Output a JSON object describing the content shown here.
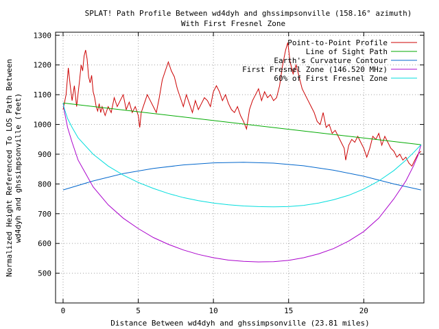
{
  "chart_data": {
    "type": "line",
    "title": "SPLAT! Path Profile Between wd4dyh and ghssimpsonville (158.16° azimuth)",
    "subtitle": "With First Fresnel Zone",
    "xlabel": "Distance Between wd4dyh and ghssimpsonville (23.81 miles)",
    "ylabel_line1": "Normalized Height Referenced To LOS Path Between",
    "ylabel_line2": "wd4dyh and ghssimpsonville (feet)",
    "xlim": [
      -0.5,
      24
    ],
    "ylim": [
      400,
      1310
    ],
    "x_ticks": [
      0,
      5,
      10,
      15,
      20
    ],
    "y_ticks": [
      500,
      600,
      700,
      800,
      900,
      1000,
      1100,
      1200,
      1300
    ],
    "grid": true,
    "legend_position": "top-right",
    "series": [
      {
        "name": "Point-to-Point Profile",
        "color": "#cc0000",
        "points": [
          [
            0,
            1050
          ],
          [
            0.2,
            1100
          ],
          [
            0.35,
            1190
          ],
          [
            0.5,
            1120
          ],
          [
            0.6,
            1080
          ],
          [
            0.75,
            1130
          ],
          [
            0.9,
            1060
          ],
          [
            1.0,
            1105
          ],
          [
            1.1,
            1150
          ],
          [
            1.2,
            1200
          ],
          [
            1.3,
            1180
          ],
          [
            1.4,
            1230
          ],
          [
            1.5,
            1250
          ],
          [
            1.6,
            1220
          ],
          [
            1.7,
            1160
          ],
          [
            1.8,
            1140
          ],
          [
            1.9,
            1165
          ],
          [
            2.0,
            1110
          ],
          [
            2.1,
            1090
          ],
          [
            2.2,
            1060
          ],
          [
            2.3,
            1045
          ],
          [
            2.4,
            1070
          ],
          [
            2.5,
            1040
          ],
          [
            2.6,
            1060
          ],
          [
            2.8,
            1030
          ],
          [
            3.0,
            1060
          ],
          [
            3.2,
            1040
          ],
          [
            3.4,
            1090
          ],
          [
            3.6,
            1060
          ],
          [
            3.8,
            1080
          ],
          [
            4.0,
            1100
          ],
          [
            4.2,
            1050
          ],
          [
            4.4,
            1075
          ],
          [
            4.6,
            1040
          ],
          [
            4.8,
            1060
          ],
          [
            5.0,
            1030
          ],
          [
            5.1,
            990
          ],
          [
            5.2,
            1040
          ],
          [
            5.4,
            1070
          ],
          [
            5.6,
            1100
          ],
          [
            5.8,
            1080
          ],
          [
            6.0,
            1060
          ],
          [
            6.2,
            1040
          ],
          [
            6.4,
            1090
          ],
          [
            6.6,
            1150
          ],
          [
            6.8,
            1180
          ],
          [
            7.0,
            1210
          ],
          [
            7.2,
            1180
          ],
          [
            7.4,
            1160
          ],
          [
            7.6,
            1120
          ],
          [
            7.8,
            1090
          ],
          [
            8.0,
            1060
          ],
          [
            8.2,
            1100
          ],
          [
            8.4,
            1070
          ],
          [
            8.6,
            1040
          ],
          [
            8.8,
            1080
          ],
          [
            9.0,
            1050
          ],
          [
            9.2,
            1070
          ],
          [
            9.4,
            1090
          ],
          [
            9.6,
            1080
          ],
          [
            9.8,
            1060
          ],
          [
            10.0,
            1110
          ],
          [
            10.2,
            1130
          ],
          [
            10.4,
            1110
          ],
          [
            10.6,
            1080
          ],
          [
            10.8,
            1100
          ],
          [
            11.0,
            1070
          ],
          [
            11.2,
            1050
          ],
          [
            11.4,
            1040
          ],
          [
            11.6,
            1060
          ],
          [
            11.8,
            1030
          ],
          [
            12.0,
            1010
          ],
          [
            12.2,
            985
          ],
          [
            12.4,
            1050
          ],
          [
            12.6,
            1080
          ],
          [
            12.8,
            1100
          ],
          [
            13.0,
            1120
          ],
          [
            13.2,
            1080
          ],
          [
            13.4,
            1110
          ],
          [
            13.6,
            1090
          ],
          [
            13.8,
            1100
          ],
          [
            14.0,
            1080
          ],
          [
            14.2,
            1090
          ],
          [
            14.4,
            1130
          ],
          [
            14.6,
            1200
          ],
          [
            14.8,
            1250
          ],
          [
            14.95,
            1275
          ],
          [
            15.1,
            1210
          ],
          [
            15.3,
            1170
          ],
          [
            15.5,
            1200
          ],
          [
            15.7,
            1160
          ],
          [
            15.9,
            1120
          ],
          [
            16.1,
            1100
          ],
          [
            16.3,
            1080
          ],
          [
            16.5,
            1060
          ],
          [
            16.7,
            1040
          ],
          [
            16.9,
            1010
          ],
          [
            17.1,
            1000
          ],
          [
            17.3,
            1040
          ],
          [
            17.5,
            990
          ],
          [
            17.7,
            1000
          ],
          [
            17.9,
            970
          ],
          [
            18.1,
            980
          ],
          [
            18.3,
            960
          ],
          [
            18.5,
            940
          ],
          [
            18.7,
            920
          ],
          [
            18.8,
            880
          ],
          [
            19.0,
            930
          ],
          [
            19.2,
            950
          ],
          [
            19.4,
            940
          ],
          [
            19.6,
            960
          ],
          [
            19.8,
            940
          ],
          [
            20.0,
            920
          ],
          [
            20.2,
            890
          ],
          [
            20.4,
            920
          ],
          [
            20.6,
            960
          ],
          [
            20.8,
            950
          ],
          [
            21.0,
            970
          ],
          [
            21.2,
            930
          ],
          [
            21.4,
            960
          ],
          [
            21.6,
            940
          ],
          [
            21.8,
            920
          ],
          [
            22.0,
            910
          ],
          [
            22.2,
            890
          ],
          [
            22.4,
            900
          ],
          [
            22.6,
            880
          ],
          [
            22.8,
            890
          ],
          [
            23.0,
            870
          ],
          [
            23.2,
            860
          ],
          [
            23.4,
            880
          ],
          [
            23.6,
            900
          ],
          [
            23.81,
            910
          ]
        ]
      },
      {
        "name": "Line of Sight Path",
        "color": "#00aa00",
        "points": [
          [
            0,
            1072
          ],
          [
            23.81,
            932
          ]
        ]
      },
      {
        "name": "Earth's Curvature Contour",
        "color": "#0066cc",
        "points": [
          [
            0,
            780
          ],
          [
            2,
            810
          ],
          [
            4,
            835
          ],
          [
            6,
            852
          ],
          [
            8,
            864
          ],
          [
            10,
            871
          ],
          [
            12,
            873
          ],
          [
            14,
            870
          ],
          [
            16,
            861
          ],
          [
            18,
            846
          ],
          [
            20,
            826
          ],
          [
            22,
            800
          ],
          [
            23.81,
            780
          ]
        ]
      },
      {
        "name": "First Fresnel Zone (146.520 MHz)",
        "color": "#aa00cc",
        "points": [
          [
            0,
            1072
          ],
          [
            0.1,
            1040
          ],
          [
            0.3,
            990
          ],
          [
            0.6,
            940
          ],
          [
            1,
            880
          ],
          [
            2,
            790
          ],
          [
            3,
            730
          ],
          [
            4,
            685
          ],
          [
            5,
            650
          ],
          [
            6,
            620
          ],
          [
            7,
            597
          ],
          [
            8,
            578
          ],
          [
            9,
            563
          ],
          [
            10,
            552
          ],
          [
            11,
            544
          ],
          [
            12,
            540
          ],
          [
            13,
            538
          ],
          [
            14,
            539
          ],
          [
            15,
            543
          ],
          [
            16,
            552
          ],
          [
            17,
            565
          ],
          [
            18,
            583
          ],
          [
            19,
            608
          ],
          [
            20,
            640
          ],
          [
            21,
            685
          ],
          [
            22,
            750
          ],
          [
            22.8,
            810
          ],
          [
            23.3,
            860
          ],
          [
            23.6,
            895
          ],
          [
            23.81,
            932
          ]
        ]
      },
      {
        "name": "60% of First Fresnel Zone",
        "color": "#00dddd",
        "points": [
          [
            0,
            1072
          ],
          [
            0.1,
            1050
          ],
          [
            0.3,
            1020
          ],
          [
            0.6,
            990
          ],
          [
            1,
            955
          ],
          [
            2,
            900
          ],
          [
            3,
            860
          ],
          [
            4,
            830
          ],
          [
            5,
            805
          ],
          [
            6,
            785
          ],
          [
            7,
            768
          ],
          [
            8,
            754
          ],
          [
            9,
            744
          ],
          [
            10,
            736
          ],
          [
            11,
            730
          ],
          [
            12,
            726
          ],
          [
            13,
            724
          ],
          [
            14,
            723
          ],
          [
            15,
            724
          ],
          [
            16,
            728
          ],
          [
            17,
            736
          ],
          [
            18,
            747
          ],
          [
            19,
            762
          ],
          [
            20,
            783
          ],
          [
            21,
            810
          ],
          [
            22,
            845
          ],
          [
            22.8,
            880
          ],
          [
            23.3,
            905
          ],
          [
            23.81,
            932
          ]
        ]
      }
    ]
  }
}
